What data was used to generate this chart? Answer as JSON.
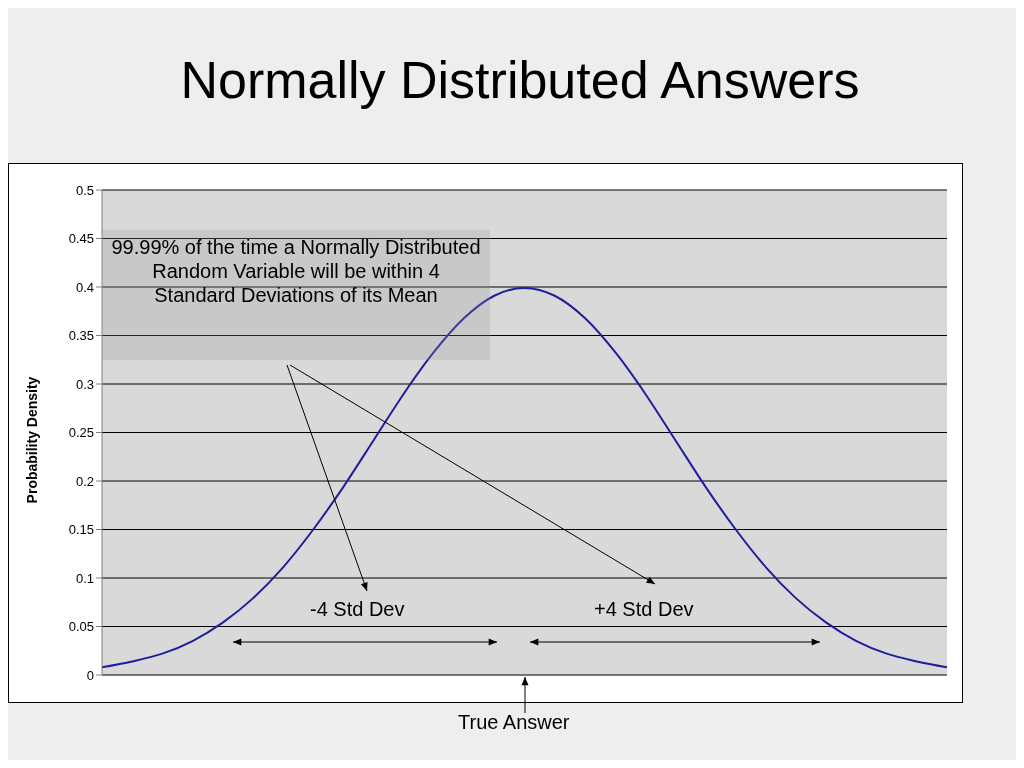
{
  "chart_data": {
    "type": "line",
    "title": "Normally Distributed Answers",
    "ylabel": "Probability Density",
    "categories": [
      null,
      null,
      null,
      null,
      null,
      null,
      null,
      null,
      null,
      null,
      null,
      null,
      null,
      null,
      null,
      null,
      null,
      null,
      null,
      null,
      null,
      null,
      null,
      null,
      null,
      null,
      null,
      null,
      null
    ],
    "series": [
      {
        "color": "#1f1f99",
        "values": [
          0.008,
          0.014,
          0.022,
          0.035,
          0.054,
          0.079,
          0.111,
          0.15,
          0.194,
          0.242,
          0.29,
          0.333,
          0.368,
          0.391,
          0.399,
          0.391,
          0.368,
          0.333,
          0.29,
          0.242,
          0.194,
          0.15,
          0.111,
          0.079,
          0.054,
          0.035,
          0.022,
          0.014,
          0.008
        ]
      }
    ],
    "ylim": [
      0,
      0.5
    ],
    "yticks": [
      0,
      0.05,
      0.1,
      0.15,
      0.2,
      0.25,
      0.3,
      0.35,
      0.4,
      0.45,
      0.5
    ],
    "grid": "y",
    "marker": "none",
    "line_style": "solid",
    "tick_labels": "y",
    "annotations": [
      "99.99% of the time a Normally Distributed Random Variable will be within 4 Standard Deviations of its Mean",
      "-4 Std Dev",
      "+4 Std Dev",
      "True Answer"
    ]
  }
}
